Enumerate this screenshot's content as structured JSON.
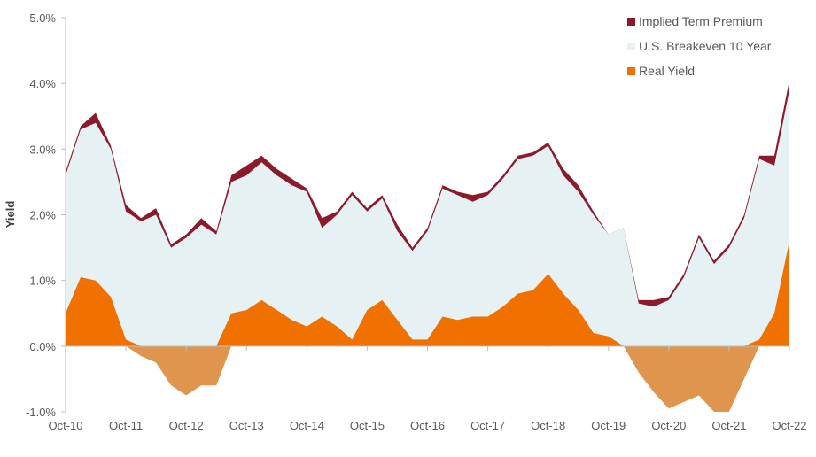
{
  "chart_data": {
    "type": "area",
    "title": "",
    "xlabel": "",
    "ylabel": "Yield",
    "ylim": [
      -1.0,
      5.0
    ],
    "yticks": [
      "-1.0%",
      "0.0%",
      "1.0%",
      "2.0%",
      "3.0%",
      "4.0%",
      "5.0%"
    ],
    "ytick_values": [
      -1,
      0,
      1,
      2,
      3,
      4,
      5
    ],
    "xticks": [
      "Oct-10",
      "Oct-11",
      "Oct-12",
      "Oct-13",
      "Oct-14",
      "Oct-15",
      "Oct-16",
      "Oct-17",
      "Oct-18",
      "Oct-19",
      "Oct-20",
      "Oct-21",
      "Oct-22"
    ],
    "grid": false,
    "legend_placement": "top-right",
    "x": [
      "Oct-10",
      "Jan-11",
      "Apr-11",
      "Jul-11",
      "Oct-11",
      "Jan-12",
      "Apr-12",
      "Jul-12",
      "Oct-12",
      "Jan-13",
      "Apr-13",
      "Jul-13",
      "Oct-13",
      "Jan-14",
      "Apr-14",
      "Jul-14",
      "Oct-14",
      "Jan-15",
      "Apr-15",
      "Jul-15",
      "Oct-15",
      "Jan-16",
      "Apr-16",
      "Jul-16",
      "Oct-16",
      "Jan-17",
      "Apr-17",
      "Jul-17",
      "Oct-17",
      "Jan-18",
      "Apr-18",
      "Jul-18",
      "Oct-18",
      "Jan-19",
      "Apr-19",
      "Jul-19",
      "Oct-19",
      "Jan-20",
      "Apr-20",
      "Jul-20",
      "Oct-20",
      "Jan-21",
      "Apr-21",
      "Jul-21",
      "Oct-21",
      "Jan-22",
      "Apr-22",
      "Jul-22",
      "Oct-22"
    ],
    "series": [
      {
        "name": "Implied Term Premium",
        "color": "#8b1a2b",
        "values": [
          2.65,
          3.35,
          3.55,
          3.05,
          2.15,
          1.95,
          2.1,
          1.55,
          1.7,
          1.95,
          1.75,
          2.6,
          2.75,
          2.9,
          2.7,
          2.55,
          2.4,
          1.95,
          2.05,
          2.35,
          2.1,
          2.3,
          1.85,
          1.5,
          1.8,
          2.45,
          2.35,
          2.3,
          2.35,
          2.6,
          2.9,
          2.95,
          3.1,
          2.7,
          2.45,
          2.05,
          1.7,
          1.8,
          0.7,
          0.7,
          0.75,
          1.1,
          1.7,
          1.3,
          1.55,
          2.0,
          2.9,
          2.9,
          4.05
        ]
      },
      {
        "name": "U.S. Breakeven 10 Year",
        "color": "#e6f1f4",
        "values": [
          2.6,
          3.3,
          3.4,
          3.0,
          2.05,
          1.9,
          2.0,
          1.5,
          1.65,
          1.85,
          1.7,
          2.5,
          2.6,
          2.8,
          2.6,
          2.45,
          2.35,
          1.8,
          2.0,
          2.3,
          2.05,
          2.25,
          1.75,
          1.45,
          1.75,
          2.4,
          2.3,
          2.2,
          2.3,
          2.55,
          2.85,
          2.9,
          3.05,
          2.6,
          2.35,
          2.0,
          1.7,
          1.8,
          0.65,
          0.6,
          0.7,
          1.05,
          1.65,
          1.25,
          1.5,
          1.95,
          2.85,
          2.75,
          3.9
        ]
      },
      {
        "name": "Real Yield",
        "color": "#f07000",
        "negative_color": "#e0954f",
        "values": [
          0.5,
          1.05,
          1.0,
          0.75,
          0.1,
          -0.15,
          -0.25,
          -0.6,
          -0.75,
          -0.6,
          -0.6,
          0.5,
          0.55,
          0.7,
          0.55,
          0.4,
          0.3,
          0.45,
          0.3,
          0.1,
          0.55,
          0.7,
          0.4,
          0.1,
          0.1,
          0.45,
          0.4,
          0.45,
          0.45,
          0.6,
          0.8,
          0.85,
          1.1,
          0.8,
          0.55,
          0.2,
          0.15,
          0.0,
          -0.4,
          -0.7,
          -0.95,
          -0.85,
          -0.75,
          -1.0,
          -1.0,
          -0.5,
          0.1,
          0.5,
          1.6
        ]
      }
    ]
  }
}
